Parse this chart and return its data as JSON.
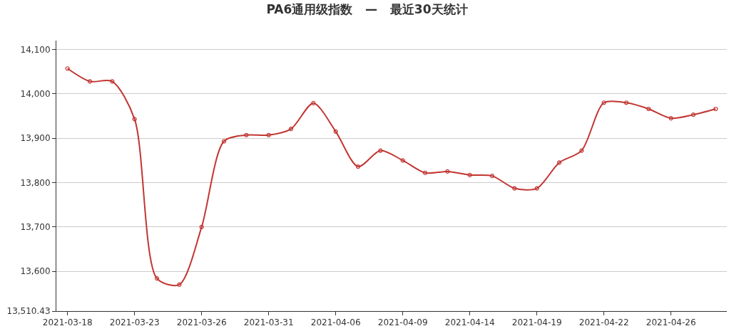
{
  "chart_data": {
    "type": "line",
    "title": "PA6通用级指数   —   最近30天统计",
    "categories": [
      "2021-03-18",
      null,
      null,
      "2021-03-23",
      null,
      null,
      "2021-03-26",
      null,
      null,
      "2021-03-31",
      null,
      null,
      "2021-04-06",
      null,
      null,
      "2021-04-09",
      null,
      null,
      "2021-04-14",
      null,
      null,
      "2021-04-19",
      null,
      null,
      "2021-04-22",
      null,
      null,
      "2021-04-26",
      null,
      null
    ],
    "series": [
      {
        "color": "#c23531",
        "values": [
          14057,
          14028,
          14028,
          13943,
          13584,
          13570,
          13700,
          13893,
          13907,
          13907,
          13921,
          13979,
          13915,
          13836,
          13872,
          13850,
          13822,
          13825,
          13817,
          13815,
          13787,
          13787,
          13845,
          13872,
          13980,
          13980,
          13966,
          13945,
          13953,
          13966
        ]
      }
    ],
    "ylim": [
      13510.43,
      14120
    ],
    "yticks": [
      {
        "value": 13510.43,
        "label": "13,510.43"
      },
      {
        "value": 13600,
        "label": "13,600"
      },
      {
        "value": 13700,
        "label": "13,700"
      },
      {
        "value": 13800,
        "label": "13,800"
      },
      {
        "value": 13900,
        "label": "13,900"
      },
      {
        "value": 14000,
        "label": "14,000"
      },
      {
        "value": 14100,
        "label": "14,100"
      }
    ],
    "grid": "y",
    "marker": "circle",
    "line_style": "solid"
  }
}
